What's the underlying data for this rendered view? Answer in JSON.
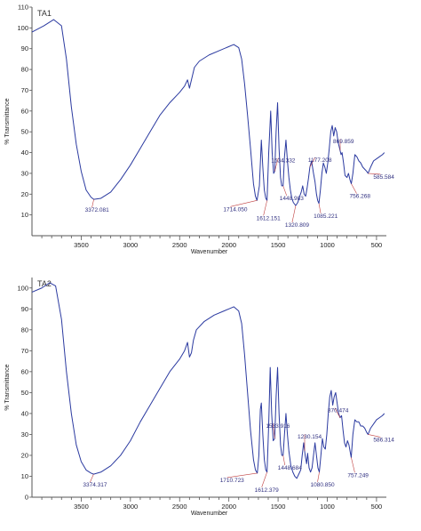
{
  "chart_data": [
    {
      "type": "line",
      "panel_label": "TA1",
      "xlabel": "Wavenumber",
      "ylabel": "% Transmittance",
      "xlim": [
        4000,
        400
      ],
      "ylim": [
        0,
        110
      ],
      "x_ticks": [
        3500,
        3000,
        2500,
        2000,
        1500,
        1000,
        500
      ],
      "y_ticks": [
        10,
        20,
        30,
        40,
        50,
        60,
        70,
        80,
        90,
        100,
        110
      ],
      "line_color": "#2b3aa0",
      "series": [
        {
          "points": [
            [
              4000,
              98
            ],
            [
              3880,
              101
            ],
            [
              3780,
              104
            ],
            [
              3700,
              101
            ],
            [
              3650,
              85
            ],
            [
              3600,
              62
            ],
            [
              3550,
              44
            ],
            [
              3500,
              31
            ],
            [
              3450,
              22
            ],
            [
              3400,
              18.5
            ],
            [
              3372,
              17.5
            ],
            [
              3300,
              18
            ],
            [
              3200,
              21
            ],
            [
              3100,
              27
            ],
            [
              3000,
              34
            ],
            [
              2900,
              42
            ],
            [
              2800,
              50
            ],
            [
              2700,
              58
            ],
            [
              2600,
              64
            ],
            [
              2500,
              69
            ],
            [
              2450,
              72
            ],
            [
              2420,
              75
            ],
            [
              2400,
              71
            ],
            [
              2370,
              77
            ],
            [
              2350,
              81
            ],
            [
              2300,
              84
            ],
            [
              2200,
              87
            ],
            [
              2100,
              89
            ],
            [
              2000,
              91
            ],
            [
              1950,
              92
            ],
            [
              1900,
              90.5
            ],
            [
              1870,
              85
            ],
            [
              1840,
              73
            ],
            [
              1810,
              58
            ],
            [
              1780,
              42
            ],
            [
              1750,
              25
            ],
            [
              1730,
              19
            ],
            [
              1714,
              17
            ],
            [
              1690,
              24
            ],
            [
              1670,
              46
            ],
            [
              1655,
              33
            ],
            [
              1640,
              22
            ],
            [
              1625,
              18
            ],
            [
              1612,
              17
            ],
            [
              1595,
              40
            ],
            [
              1575,
              60
            ],
            [
              1560,
              40
            ],
            [
              1545,
              30
            ],
            [
              1534,
              31
            ],
            [
              1520,
              50
            ],
            [
              1505,
              64
            ],
            [
              1490,
              42
            ],
            [
              1475,
              28
            ],
            [
              1463,
              24
            ],
            [
              1449,
              24
            ],
            [
              1435,
              38
            ],
            [
              1420,
              46
            ],
            [
              1405,
              36
            ],
            [
              1390,
              28
            ],
            [
              1375,
              22
            ],
            [
              1360,
              18
            ],
            [
              1345,
              16
            ],
            [
              1321,
              14.5
            ],
            [
              1300,
              16
            ],
            [
              1280,
              19
            ],
            [
              1265,
              21
            ],
            [
              1250,
              24
            ],
            [
              1235,
              20
            ],
            [
              1220,
              19
            ],
            [
              1205,
              23
            ],
            [
              1190,
              28
            ],
            [
              1177,
              33
            ],
            [
              1160,
              36
            ],
            [
              1140,
              30
            ],
            [
              1125,
              26
            ],
            [
              1110,
              20
            ],
            [
              1098,
              17
            ],
            [
              1085,
              15.5
            ],
            [
              1070,
              22
            ],
            [
              1055,
              30
            ],
            [
              1040,
              35
            ],
            [
              1025,
              33
            ],
            [
              1010,
              30
            ],
            [
              995,
              35
            ],
            [
              980,
              42
            ],
            [
              965,
              50
            ],
            [
              950,
              53
            ],
            [
              935,
              48
            ],
            [
              920,
              52
            ],
            [
              905,
              50
            ],
            [
              890,
              45
            ],
            [
              870,
              41
            ],
            [
              860,
              39
            ],
            [
              850,
              40
            ],
            [
              835,
              35
            ],
            [
              820,
              29
            ],
            [
              800,
              28
            ],
            [
              785,
              30
            ],
            [
              770,
              27
            ],
            [
              756,
              25
            ],
            [
              740,
              30
            ],
            [
              720,
              39
            ],
            [
              700,
              38
            ],
            [
              680,
              36
            ],
            [
              660,
              35
            ],
            [
              640,
              33
            ],
            [
              620,
              32
            ],
            [
              600,
              31
            ],
            [
              586,
              30
            ],
            [
              560,
              33
            ],
            [
              530,
              36
            ],
            [
              500,
              37
            ],
            [
              470,
              38
            ],
            [
              440,
              39
            ],
            [
              420,
              40
            ]
          ]
        }
      ],
      "peak_labels": [
        {
          "text": "3372.081",
          "x": 3372,
          "y": 17.5
        },
        {
          "text": "1714.050",
          "x": 1714,
          "y": 17
        },
        {
          "text": "1612.151",
          "x": 1612,
          "y": 17
        },
        {
          "text": "1534.332",
          "x": 1534,
          "y": 31
        },
        {
          "text": "1448.983",
          "x": 1449,
          "y": 24
        },
        {
          "text": "1320.809",
          "x": 1321,
          "y": 14.5
        },
        {
          "text": "1177.208",
          "x": 1177,
          "y": 33
        },
        {
          "text": "1085.221",
          "x": 1085,
          "y": 15.5
        },
        {
          "text": "869.859",
          "x": 869,
          "y": 41
        },
        {
          "text": "756.268",
          "x": 756,
          "y": 25
        },
        {
          "text": "585.584",
          "x": 586,
          "y": 30
        }
      ]
    },
    {
      "type": "line",
      "panel_label": "TA2",
      "xlabel": "Wavenumber",
      "ylabel": "% Transmittance",
      "xlim": [
        4000,
        400
      ],
      "ylim": [
        0,
        105
      ],
      "x_ticks": [
        3500,
        3000,
        2500,
        2000,
        1500,
        1000,
        500
      ],
      "y_ticks": [
        0,
        10,
        20,
        30,
        40,
        50,
        60,
        70,
        80,
        90,
        100
      ],
      "line_color": "#2b3aa0",
      "series": [
        {
          "points": [
            [
              4000,
              98
            ],
            [
              3900,
              100
            ],
            [
              3820,
              102.5
            ],
            [
              3760,
              101
            ],
            [
              3700,
              85
            ],
            [
              3650,
              60
            ],
            [
              3600,
              40
            ],
            [
              3550,
              25
            ],
            [
              3500,
              17
            ],
            [
              3450,
              13
            ],
            [
              3400,
              11.5
            ],
            [
              3374,
              11
            ],
            [
              3300,
              12
            ],
            [
              3200,
              15
            ],
            [
              3100,
              20
            ],
            [
              3000,
              27
            ],
            [
              2900,
              36
            ],
            [
              2800,
              44
            ],
            [
              2700,
              52
            ],
            [
              2600,
              60
            ],
            [
              2500,
              66
            ],
            [
              2450,
              70
            ],
            [
              2420,
              74
            ],
            [
              2400,
              67
            ],
            [
              2380,
              69
            ],
            [
              2360,
              75
            ],
            [
              2330,
              80
            ],
            [
              2250,
              84
            ],
            [
              2150,
              87
            ],
            [
              2050,
              89
            ],
            [
              2000,
              90
            ],
            [
              1950,
              91
            ],
            [
              1900,
              89
            ],
            [
              1870,
              83
            ],
            [
              1840,
              68
            ],
            [
              1810,
              50
            ],
            [
              1780,
              32
            ],
            [
              1750,
              18
            ],
            [
              1730,
              13
            ],
            [
              1711,
              11.5
            ],
            [
              1695,
              20
            ],
            [
              1680,
              42
            ],
            [
              1670,
              45
            ],
            [
              1655,
              30
            ],
            [
              1640,
              18
            ],
            [
              1625,
              13
            ],
            [
              1612,
              12
            ],
            [
              1595,
              35
            ],
            [
              1580,
              62
            ],
            [
              1565,
              40
            ],
            [
              1550,
              27
            ],
            [
              1534,
              28
            ],
            [
              1520,
              48
            ],
            [
              1505,
              62
            ],
            [
              1490,
              40
            ],
            [
              1475,
              25
            ],
            [
              1462,
              20
            ],
            [
              1449,
              20
            ],
            [
              1435,
              30
            ],
            [
              1420,
              40
            ],
            [
              1405,
              30
            ],
            [
              1390,
              22
            ],
            [
              1370,
              15
            ],
            [
              1350,
              12
            ],
            [
              1330,
              10
            ],
            [
              1310,
              9
            ],
            [
              1290,
              11
            ],
            [
              1270,
              13
            ],
            [
              1255,
              20
            ],
            [
              1240,
              26
            ],
            [
              1225,
              20
            ],
            [
              1210,
              16
            ],
            [
              1200,
              21
            ],
            [
              1185,
              14
            ],
            [
              1170,
              12
            ],
            [
              1155,
              14
            ],
            [
              1140,
              20
            ],
            [
              1125,
              26
            ],
            [
              1110,
              20
            ],
            [
              1095,
              14
            ],
            [
              1081,
              12
            ],
            [
              1065,
              20
            ],
            [
              1050,
              28
            ],
            [
              1035,
              24
            ],
            [
              1020,
              23
            ],
            [
              1005,
              30
            ],
            [
              990,
              40
            ],
            [
              975,
              48
            ],
            [
              960,
              51
            ],
            [
              945,
              44
            ],
            [
              930,
              48
            ],
            [
              915,
              50
            ],
            [
              900,
              45
            ],
            [
              885,
              40
            ],
            [
              870,
              38
            ],
            [
              855,
              39
            ],
            [
              840,
              32
            ],
            [
              825,
              26
            ],
            [
              810,
              24
            ],
            [
              795,
              27
            ],
            [
              780,
              25
            ],
            [
              765,
              21
            ],
            [
              757,
              19
            ],
            [
              740,
              30
            ],
            [
              720,
              37
            ],
            [
              700,
              36
            ],
            [
              680,
              36
            ],
            [
              660,
              34
            ],
            [
              640,
              34
            ],
            [
              620,
              33
            ],
            [
              600,
              31
            ],
            [
              586,
              30
            ],
            [
              560,
              33
            ],
            [
              530,
              35
            ],
            [
              500,
              37
            ],
            [
              470,
              38
            ],
            [
              440,
              39
            ],
            [
              420,
              40
            ]
          ]
        }
      ],
      "peak_labels": [
        {
          "text": "3374.317",
          "x": 3374,
          "y": 11
        },
        {
          "text": "1710.723",
          "x": 1711,
          "y": 11.5
        },
        {
          "text": "1612.379",
          "x": 1612,
          "y": 12
        },
        {
          "text": "1533.916",
          "x": 1534,
          "y": 28
        },
        {
          "text": "1448.684",
          "x": 1449,
          "y": 20
        },
        {
          "text": "1230.154",
          "x": 1230,
          "y": 22
        },
        {
          "text": "1080.850",
          "x": 1081,
          "y": 12
        },
        {
          "text": "870.474",
          "x": 870,
          "y": 38
        },
        {
          "text": "757.249",
          "x": 757,
          "y": 19
        },
        {
          "text": "586.314",
          "x": 586,
          "y": 30
        }
      ]
    }
  ]
}
